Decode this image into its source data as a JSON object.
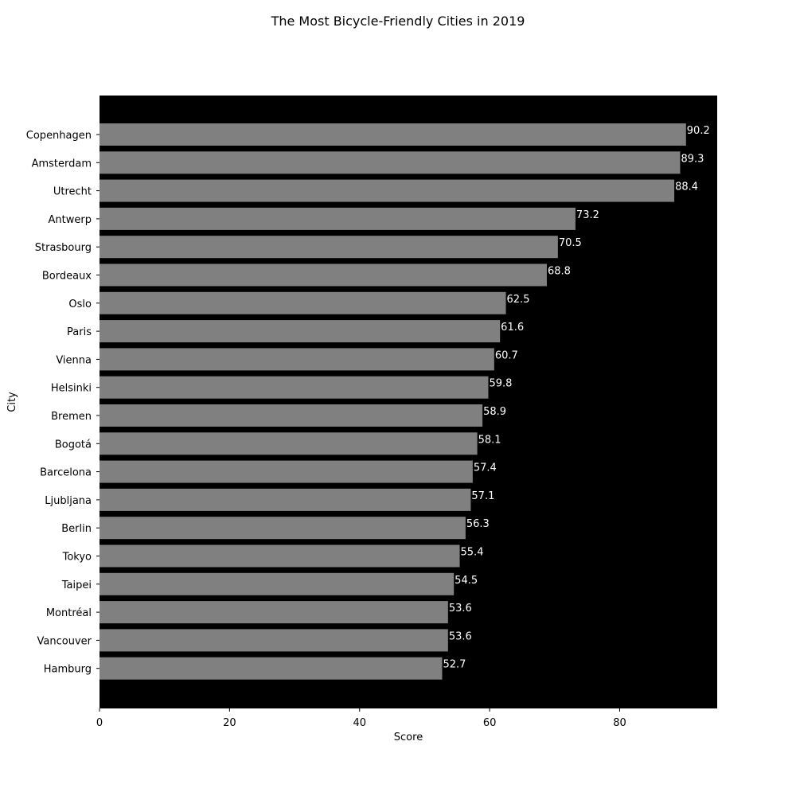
{
  "chart_data": {
    "type": "bar",
    "orientation": "horizontal",
    "title": "The Most Bicycle-Friendly Cities in 2019",
    "xlabel": "Score",
    "ylabel": "City",
    "xlim": [
      0,
      95
    ],
    "xticks": [
      0,
      20,
      40,
      60,
      80
    ],
    "grid": false,
    "legend": "none",
    "colors": {
      "plot_background": "#000000",
      "bar": "#808080",
      "data_label": "#ffffff",
      "page_background": "#ffffff"
    },
    "categories": [
      "Copenhagen",
      "Amsterdam",
      "Utrecht",
      "Antwerp",
      "Strasbourg",
      "Bordeaux",
      "Oslo",
      "Paris",
      "Vienna",
      "Helsinki",
      "Bremen",
      "Bogotá",
      "Barcelona",
      "Ljubljana",
      "Berlin",
      "Tokyo",
      "Taipei",
      "Montréal",
      "Vancouver",
      "Hamburg"
    ],
    "values": [
      90.2,
      89.3,
      88.4,
      73.2,
      70.5,
      68.8,
      62.5,
      61.6,
      60.7,
      59.8,
      58.9,
      58.1,
      57.4,
      57.1,
      56.3,
      55.4,
      54.5,
      53.6,
      53.6,
      52.7
    ]
  }
}
